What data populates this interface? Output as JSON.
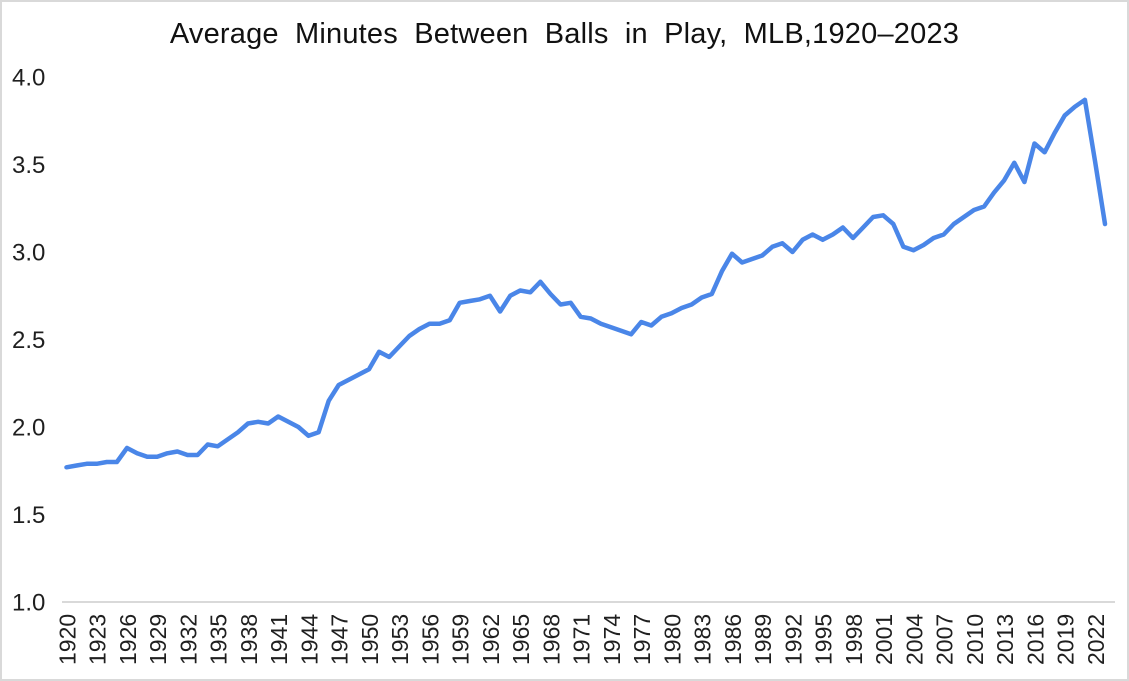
{
  "page": {
    "background_color": "#ffffff",
    "frame_border_color": "#d9d9d9"
  },
  "chart_data": {
    "type": "line",
    "title": "Average Minutes Between Balls in Play, MLB,1920–2023",
    "xlabel": "",
    "ylabel": "",
    "legend_position": "none",
    "grid": "off",
    "ylim": [
      1.0,
      4.0
    ],
    "y_tick_labels": [
      "1.0",
      "1.5",
      "2.0",
      "2.5",
      "3.0",
      "3.5",
      "4.0"
    ],
    "x_tick_labels": [
      "1920",
      "1923",
      "1926",
      "1929",
      "1932",
      "1935",
      "1938",
      "1941",
      "1944",
      "1947",
      "1950",
      "1953",
      "1956",
      "1959",
      "1962",
      "1965",
      "1968",
      "1971",
      "1974",
      "1977",
      "1980",
      "1983",
      "1986",
      "1989",
      "1992",
      "1995",
      "1998",
      "2001",
      "2004",
      "2007",
      "2010",
      "2013",
      "2016",
      "2019",
      "2022"
    ],
    "x_tick_interval": 3,
    "x_tick_rotation_deg": -90,
    "line_color": "#4a86e8",
    "line_width": 4.5,
    "axis_line_color": "#d9d9d9",
    "tick_text_color": "#1f1f1f",
    "series": [
      {
        "name": "Average minutes between balls in play",
        "years": [
          1920,
          1921,
          1922,
          1923,
          1924,
          1925,
          1926,
          1927,
          1928,
          1929,
          1930,
          1931,
          1932,
          1933,
          1934,
          1935,
          1936,
          1937,
          1938,
          1939,
          1940,
          1941,
          1942,
          1943,
          1944,
          1945,
          1946,
          1947,
          1948,
          1949,
          1950,
          1951,
          1952,
          1953,
          1954,
          1955,
          1956,
          1957,
          1958,
          1959,
          1960,
          1961,
          1962,
          1963,
          1964,
          1965,
          1966,
          1967,
          1968,
          1969,
          1970,
          1971,
          1972,
          1973,
          1974,
          1975,
          1976,
          1977,
          1978,
          1979,
          1980,
          1981,
          1982,
          1983,
          1984,
          1985,
          1986,
          1987,
          1988,
          1989,
          1990,
          1991,
          1992,
          1993,
          1994,
          1995,
          1996,
          1997,
          1998,
          1999,
          2000,
          2001,
          2002,
          2003,
          2004,
          2005,
          2006,
          2007,
          2008,
          2009,
          2010,
          2011,
          2012,
          2013,
          2014,
          2015,
          2016,
          2017,
          2018,
          2019,
          2020,
          2021,
          2022,
          2023
        ],
        "values": [
          1.77,
          1.78,
          1.79,
          1.79,
          1.8,
          1.8,
          1.88,
          1.85,
          1.83,
          1.83,
          1.85,
          1.86,
          1.84,
          1.84,
          1.9,
          1.89,
          1.93,
          1.97,
          2.02,
          2.03,
          2.02,
          2.06,
          2.03,
          2.0,
          1.95,
          1.97,
          2.15,
          2.24,
          2.27,
          2.3,
          2.33,
          2.43,
          2.4,
          2.46,
          2.52,
          2.56,
          2.59,
          2.59,
          2.61,
          2.71,
          2.72,
          2.73,
          2.75,
          2.66,
          2.75,
          2.78,
          2.77,
          2.83,
          2.76,
          2.7,
          2.71,
          2.63,
          2.62,
          2.59,
          2.57,
          2.55,
          2.53,
          2.6,
          2.58,
          2.63,
          2.65,
          2.68,
          2.7,
          2.74,
          2.76,
          2.89,
          2.99,
          2.94,
          2.96,
          2.98,
          3.03,
          3.05,
          3.0,
          3.07,
          3.1,
          3.07,
          3.1,
          3.14,
          3.08,
          3.14,
          3.2,
          3.21,
          3.16,
          3.03,
          3.01,
          3.04,
          3.08,
          3.1,
          3.16,
          3.2,
          3.24,
          3.26,
          3.34,
          3.41,
          3.51,
          3.4,
          3.62,
          3.57,
          3.68,
          3.78,
          3.83,
          3.87,
          3.52,
          3.16
        ]
      }
    ]
  }
}
